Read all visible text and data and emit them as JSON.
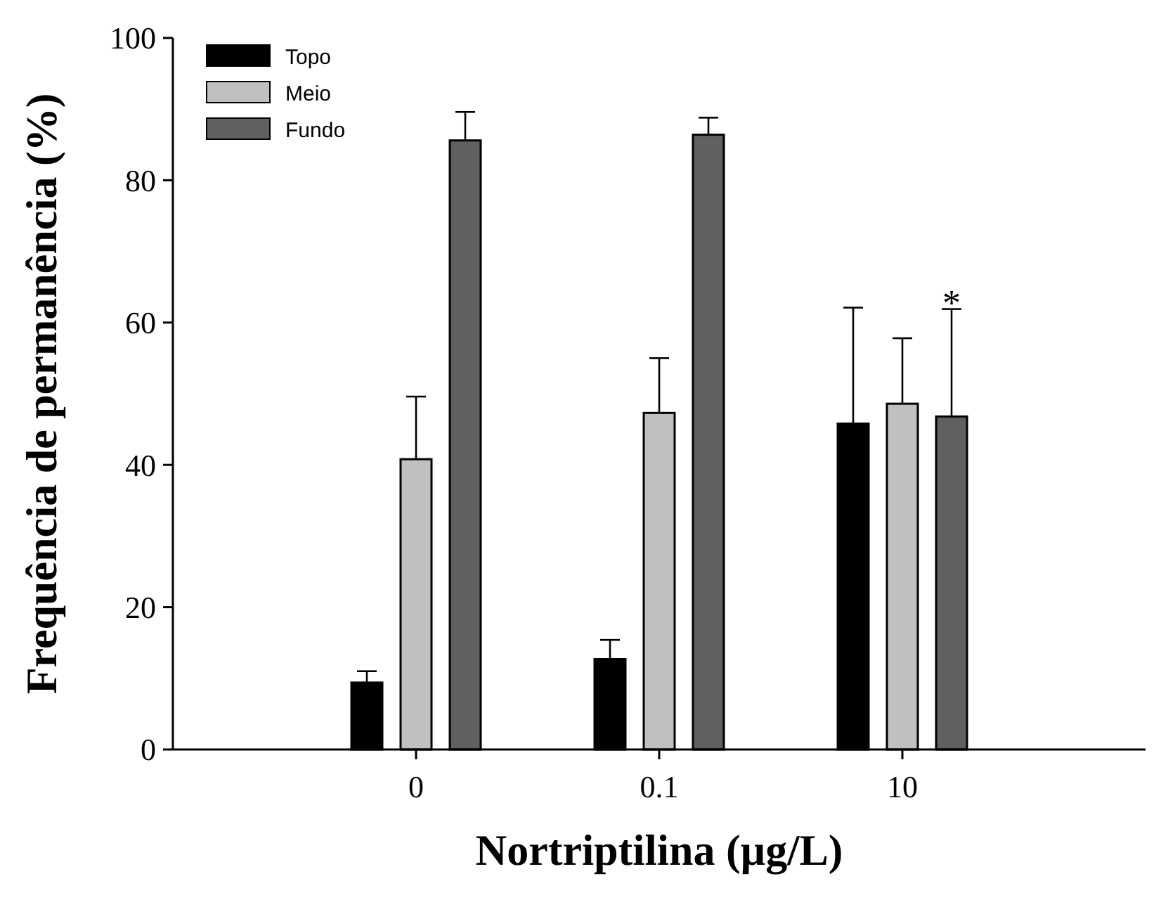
{
  "chart_data": {
    "type": "bar",
    "xlabel": "Nortriptilina (µg/L)",
    "ylabel": "Frequência de permanência (%)",
    "categories": [
      "0",
      "0.1",
      "10"
    ],
    "series": [
      {
        "name": "Topo",
        "color": "#000000",
        "values": [
          9.4,
          12.7,
          45.8
        ],
        "errors": [
          1.6,
          2.7,
          16.3
        ]
      },
      {
        "name": "Meio",
        "color": "#c0c0c0",
        "values": [
          40.8,
          47.3,
          48.6
        ],
        "errors": [
          8.8,
          7.7,
          9.2
        ]
      },
      {
        "name": "Fundo",
        "color": "#606060",
        "values": [
          85.6,
          86.4,
          46.8
        ],
        "errors": [
          4.0,
          2.4,
          15.1
        ]
      }
    ],
    "ylim": [
      0,
      100
    ],
    "yticks": [
      0,
      20,
      40,
      60,
      80,
      100
    ],
    "grid": false,
    "legend": "top left",
    "annotations": [
      "*"
    ]
  }
}
